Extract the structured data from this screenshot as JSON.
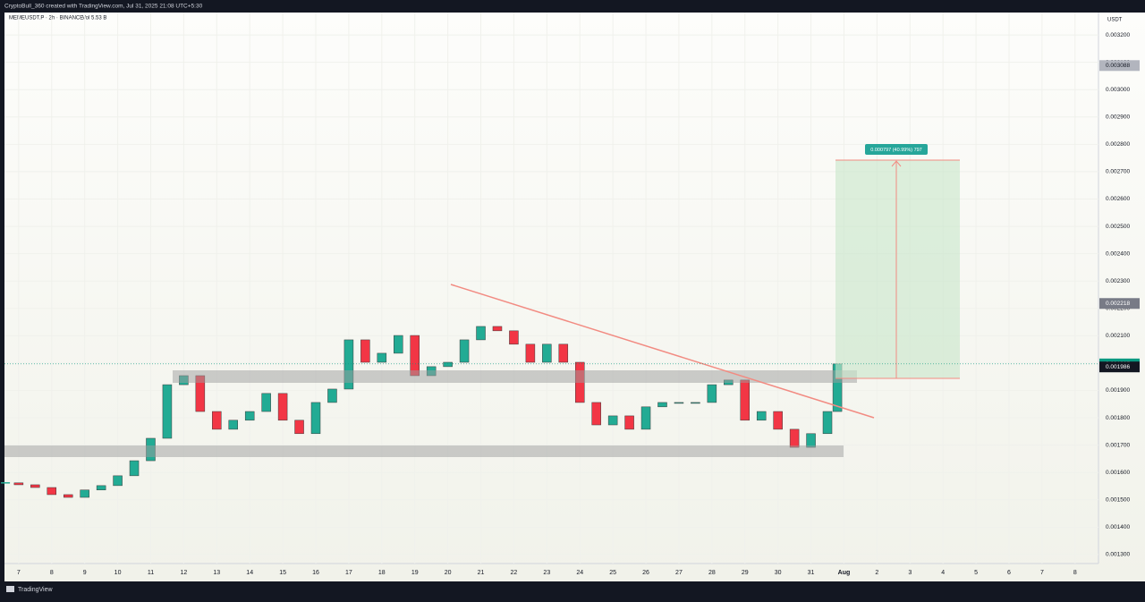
{
  "header": {
    "caption": "CryptoBull_360 created with TradingView.com, Jul 31, 2025 21:08 UTC+5:30",
    "symbol": "MEMEUSDT.P · 2h · BINANCE",
    "volume": "Vol 5.53 B",
    "currency": "USDT",
    "brand": "TradingView"
  },
  "chart_data": {
    "type": "candlestick",
    "x": [
      -0.4,
      0,
      0.5,
      1,
      1.5,
      2,
      2.5,
      3,
      3.5,
      4,
      4.5,
      5,
      5.5,
      6,
      6.5,
      7,
      7.5,
      8,
      8.5,
      9,
      9.5,
      10,
      10.5,
      11,
      11.5,
      12,
      12.5,
      13,
      13.5,
      14,
      14.5,
      15,
      15.5,
      16,
      16.5,
      17,
      17.5,
      18,
      18.5,
      19,
      19.5,
      20,
      20.5,
      21,
      21.5,
      22,
      22.5,
      23,
      23.5,
      24,
      24.5,
      24.8
    ],
    "values": [
      0.001562,
      0.001555,
      0.001545,
      0.001519,
      0.001509,
      0.001536,
      0.001552,
      0.001588,
      0.001643,
      0.001725,
      0.001921,
      0.001954,
      0.001823,
      0.001758,
      0.001791,
      0.001823,
      0.001889,
      0.001791,
      0.001742,
      0.001856,
      0.001905,
      0.002085,
      0.002003,
      0.002036,
      0.002101,
      0.001954,
      0.001987,
      0.002003,
      0.002085,
      0.002134,
      0.002118,
      0.002069,
      0.002003,
      0.002069,
      0.002003,
      0.001856,
      0.001774,
      0.001807,
      0.001758,
      0.00184,
      0.001856,
      0.001856,
      0.001856,
      0.001921,
      0.001938,
      0.001791,
      0.001823,
      0.001758,
      0.001692,
      0.001742,
      0.001823,
      0.001997
    ],
    "up_color": "#22ab94",
    "down_color": "#f23645",
    "xlim": [
      -0.43,
      32.71
    ],
    "xticks": [
      {
        "value": 0,
        "label": "7"
      },
      {
        "value": 1,
        "label": "8"
      },
      {
        "value": 2,
        "label": "9"
      },
      {
        "value": 3,
        "label": "10"
      },
      {
        "value": 4,
        "label": "11"
      },
      {
        "value": 5,
        "label": "12"
      },
      {
        "value": 6,
        "label": "13"
      },
      {
        "value": 7,
        "label": "14"
      },
      {
        "value": 8,
        "label": "15"
      },
      {
        "value": 9,
        "label": "16"
      },
      {
        "value": 10,
        "label": "17"
      },
      {
        "value": 11,
        "label": "18"
      },
      {
        "value": 12,
        "label": "19"
      },
      {
        "value": 13,
        "label": "20"
      },
      {
        "value": 14,
        "label": "21"
      },
      {
        "value": 15,
        "label": "22"
      },
      {
        "value": 16,
        "label": "23"
      },
      {
        "value": 17,
        "label": "24"
      },
      {
        "value": 18,
        "label": "25"
      },
      {
        "value": 19,
        "label": "26"
      },
      {
        "value": 20,
        "label": "27"
      },
      {
        "value": 21,
        "label": "28"
      },
      {
        "value": 22,
        "label": "29"
      },
      {
        "value": 23,
        "label": "30"
      },
      {
        "value": 24,
        "label": "31"
      },
      {
        "value": 25,
        "label": "Aug"
      },
      {
        "value": 26,
        "label": "2"
      },
      {
        "value": 27,
        "label": "3"
      },
      {
        "value": 28,
        "label": "4"
      },
      {
        "value": 29,
        "label": "5"
      },
      {
        "value": 30,
        "label": "6"
      },
      {
        "value": 31,
        "label": "7"
      },
      {
        "value": 32,
        "label": "8"
      }
    ],
    "ylim": [
      0.001267,
      0.003282
    ],
    "yticks": [
      {
        "value": 0.0013,
        "label": "0.001300"
      },
      {
        "value": 0.0014,
        "label": "0.001400"
      },
      {
        "value": 0.0015,
        "label": "0.001500"
      },
      {
        "value": 0.0016,
        "label": "0.001600"
      },
      {
        "value": 0.0017,
        "label": "0.001700"
      },
      {
        "value": 0.0018,
        "label": "0.001800"
      },
      {
        "value": 0.0019,
        "label": "0.001900"
      },
      {
        "value": 0.002,
        "label": "0.002000"
      },
      {
        "value": 0.0021,
        "label": "0.002100"
      },
      {
        "value": 0.0022,
        "label": "0.002200"
      },
      {
        "value": 0.0023,
        "label": "0.002300"
      },
      {
        "value": 0.0024,
        "label": "0.002400"
      },
      {
        "value": 0.0025,
        "label": "0.002500"
      },
      {
        "value": 0.0026,
        "label": "0.002600"
      },
      {
        "value": 0.0027,
        "label": "0.002700"
      },
      {
        "value": 0.0028,
        "label": "0.002800"
      },
      {
        "value": 0.0029,
        "label": "0.002900"
      },
      {
        "value": 0.003,
        "label": "0.003000"
      },
      {
        "value": 0.0031,
        "label": "0.003100"
      },
      {
        "value": 0.0032,
        "label": "0.003200"
      }
    ],
    "grid": true,
    "price_markers": [
      {
        "value": 0.003088,
        "color": "#b2b5be"
      },
      {
        "value": 0.002218,
        "color": "#787b86"
      },
      {
        "value": 0.001997,
        "color": "#089981"
      },
      {
        "value": 0.001986,
        "color": "#131722"
      }
    ],
    "position_label": "0.000797 (40.99%) 797"
  }
}
